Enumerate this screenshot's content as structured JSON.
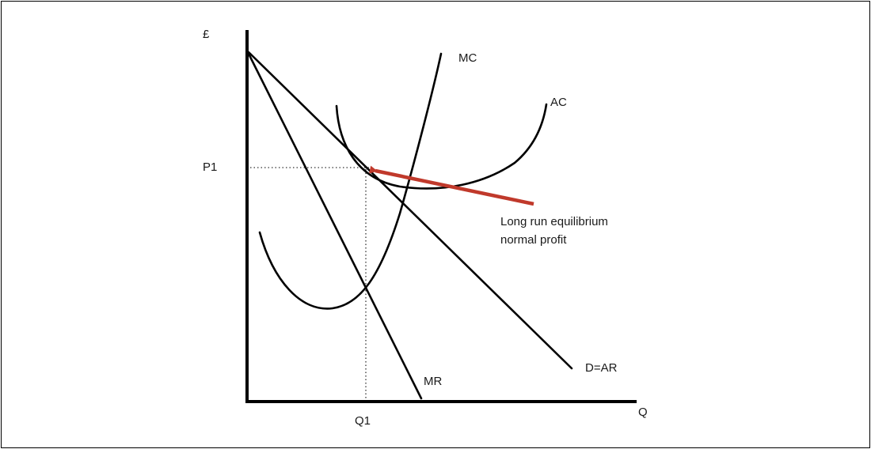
{
  "diagram": {
    "y_axis_label": "£",
    "x_axis_label": "Q",
    "price_label": "P1",
    "quantity_label": "Q1",
    "curves": {
      "mc": "MC",
      "ac": "AC",
      "demand": "D=AR",
      "mr": "MR"
    },
    "annotation": {
      "line1": "Long run equilibrium",
      "line2": "normal profit",
      "color": "#c0392b"
    }
  }
}
